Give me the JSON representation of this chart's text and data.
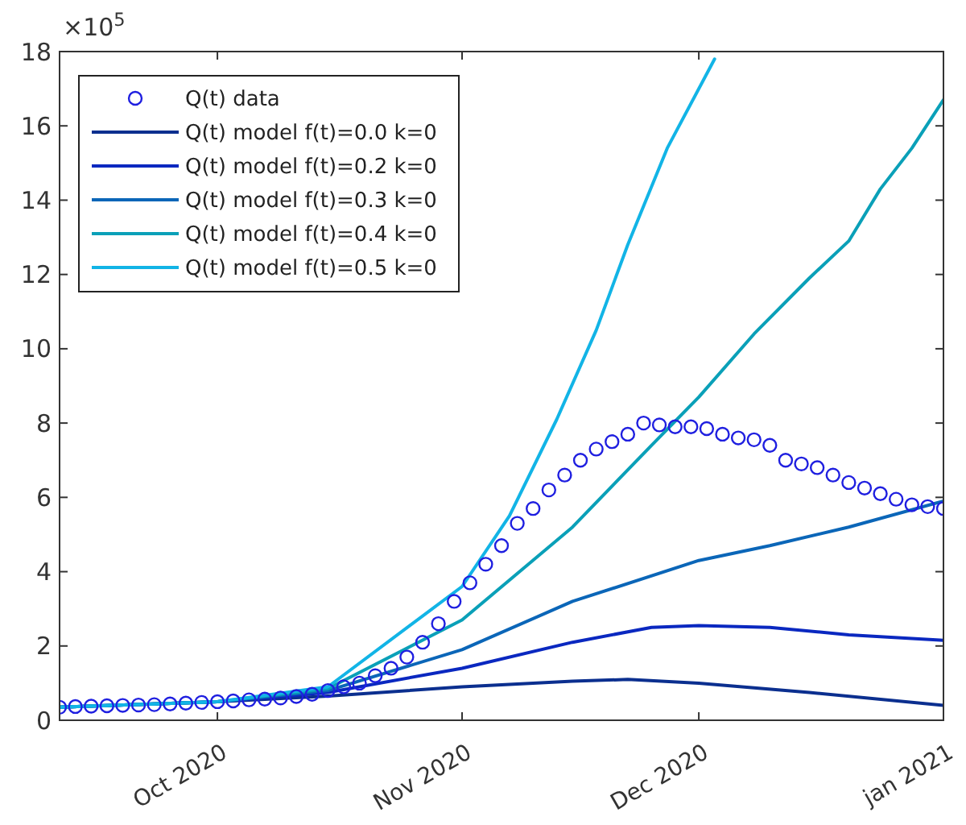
{
  "chart_data": {
    "type": "line",
    "annotations": [
      "×10$^{5}$"
    ],
    "xlim": [
      "2020-09-11",
      "2021-01-01"
    ],
    "xticks": [
      {
        "value": "2020-10-01",
        "label": "Oct 2020"
      },
      {
        "value": "2020-11-01",
        "label": "Nov 2020"
      },
      {
        "value": "2020-12-01",
        "label": "Dec 2020"
      },
      {
        "value": "2021-01-01",
        "label": "jan 2021"
      }
    ],
    "ylim": [
      0,
      18
    ],
    "yticks": [
      0,
      2,
      4,
      6,
      8,
      10,
      12,
      14,
      16,
      18
    ],
    "grid": false,
    "legend": "top left",
    "series": [
      {
        "name": "Q(t) data",
        "type": "scatter",
        "marker": "circle",
        "color": "#1f1fe0",
        "x": [
          "2020-09-11",
          "2020-09-13",
          "2020-09-15",
          "2020-09-17",
          "2020-09-19",
          "2020-09-21",
          "2020-09-23",
          "2020-09-25",
          "2020-09-27",
          "2020-09-29",
          "2020-10-01",
          "2020-10-03",
          "2020-10-05",
          "2020-10-07",
          "2020-10-09",
          "2020-10-11",
          "2020-10-13",
          "2020-10-15",
          "2020-10-17",
          "2020-10-19",
          "2020-10-21",
          "2020-10-23",
          "2020-10-25",
          "2020-10-27",
          "2020-10-29",
          "2020-10-31",
          "2020-11-02",
          "2020-11-04",
          "2020-11-06",
          "2020-11-08",
          "2020-11-10",
          "2020-11-12",
          "2020-11-14",
          "2020-11-16",
          "2020-11-18",
          "2020-11-20",
          "2020-11-22",
          "2020-11-24",
          "2020-11-26",
          "2020-11-28",
          "2020-11-30",
          "2020-12-02",
          "2020-12-04",
          "2020-12-06",
          "2020-12-08",
          "2020-12-10",
          "2020-12-12",
          "2020-12-14",
          "2020-12-16",
          "2020-12-18",
          "2020-12-20",
          "2020-12-22",
          "2020-12-24",
          "2020-12-26",
          "2020-12-28",
          "2020-12-30",
          "2021-01-01"
        ],
        "values": [
          0.35,
          0.37,
          0.38,
          0.39,
          0.4,
          0.41,
          0.42,
          0.44,
          0.46,
          0.48,
          0.5,
          0.52,
          0.55,
          0.57,
          0.6,
          0.64,
          0.7,
          0.8,
          0.9,
          1.0,
          1.2,
          1.4,
          1.7,
          2.1,
          2.6,
          3.2,
          3.7,
          4.2,
          4.7,
          5.3,
          5.7,
          6.2,
          6.6,
          7.0,
          7.3,
          7.5,
          7.7,
          8.0,
          7.95,
          7.9,
          7.9,
          7.85,
          7.7,
          7.6,
          7.55,
          7.4,
          7.0,
          6.9,
          6.8,
          6.6,
          6.4,
          6.25,
          6.1,
          5.95,
          5.8,
          5.75,
          5.7
        ]
      },
      {
        "name": "Q(t) model f(t)=0.0 k=0",
        "color": "#0b2f8f",
        "x": [
          "2020-09-11",
          "2020-10-01",
          "2020-10-15",
          "2020-11-01",
          "2020-11-15",
          "2020-11-22",
          "2020-12-01",
          "2020-12-15",
          "2021-01-01"
        ],
        "values": [
          0.35,
          0.5,
          0.65,
          0.9,
          1.05,
          1.1,
          1.0,
          0.75,
          0.4
        ]
      },
      {
        "name": "Q(t) model f(t)=0.2 k=0",
        "color": "#0a28c0",
        "x": [
          "2020-09-11",
          "2020-10-01",
          "2020-10-15",
          "2020-11-01",
          "2020-11-15",
          "2020-11-25",
          "2020-12-01",
          "2020-12-10",
          "2020-12-20",
          "2021-01-01"
        ],
        "values": [
          0.35,
          0.5,
          0.75,
          1.4,
          2.1,
          2.5,
          2.55,
          2.5,
          2.3,
          2.15
        ]
      },
      {
        "name": "Q(t) model f(t)=0.3 k=0",
        "color": "#0b66b8",
        "x": [
          "2020-09-11",
          "2020-10-01",
          "2020-10-15",
          "2020-11-01",
          "2020-11-15",
          "2020-12-01",
          "2020-12-10",
          "2020-12-20",
          "2021-01-01"
        ],
        "values": [
          0.35,
          0.5,
          0.8,
          1.9,
          3.2,
          4.3,
          4.7,
          5.2,
          5.9
        ]
      },
      {
        "name": "Q(t) model f(t)=0.4 k=0",
        "color": "#0aa0b8",
        "x": [
          "2020-09-11",
          "2020-10-01",
          "2020-10-15",
          "2020-11-01",
          "2020-11-15",
          "2020-11-25",
          "2020-12-01",
          "2020-12-08",
          "2020-12-15",
          "2020-12-20",
          "2020-12-24",
          "2020-12-28",
          "2021-01-01"
        ],
        "values": [
          0.35,
          0.5,
          0.85,
          2.7,
          5.2,
          7.4,
          8.7,
          10.4,
          11.9,
          12.9,
          14.3,
          15.4,
          16.7
        ]
      },
      {
        "name": "Q(t) model f(t)=0.5 k=0",
        "color": "#12b4e6",
        "x": [
          "2020-09-11",
          "2020-10-01",
          "2020-10-15",
          "2020-11-01",
          "2020-11-07",
          "2020-11-13",
          "2020-11-18",
          "2020-11-22",
          "2020-11-27",
          "2020-12-03"
        ],
        "values": [
          0.35,
          0.5,
          0.9,
          3.6,
          5.5,
          8.1,
          10.5,
          12.8,
          15.4,
          17.8
        ]
      }
    ]
  }
}
